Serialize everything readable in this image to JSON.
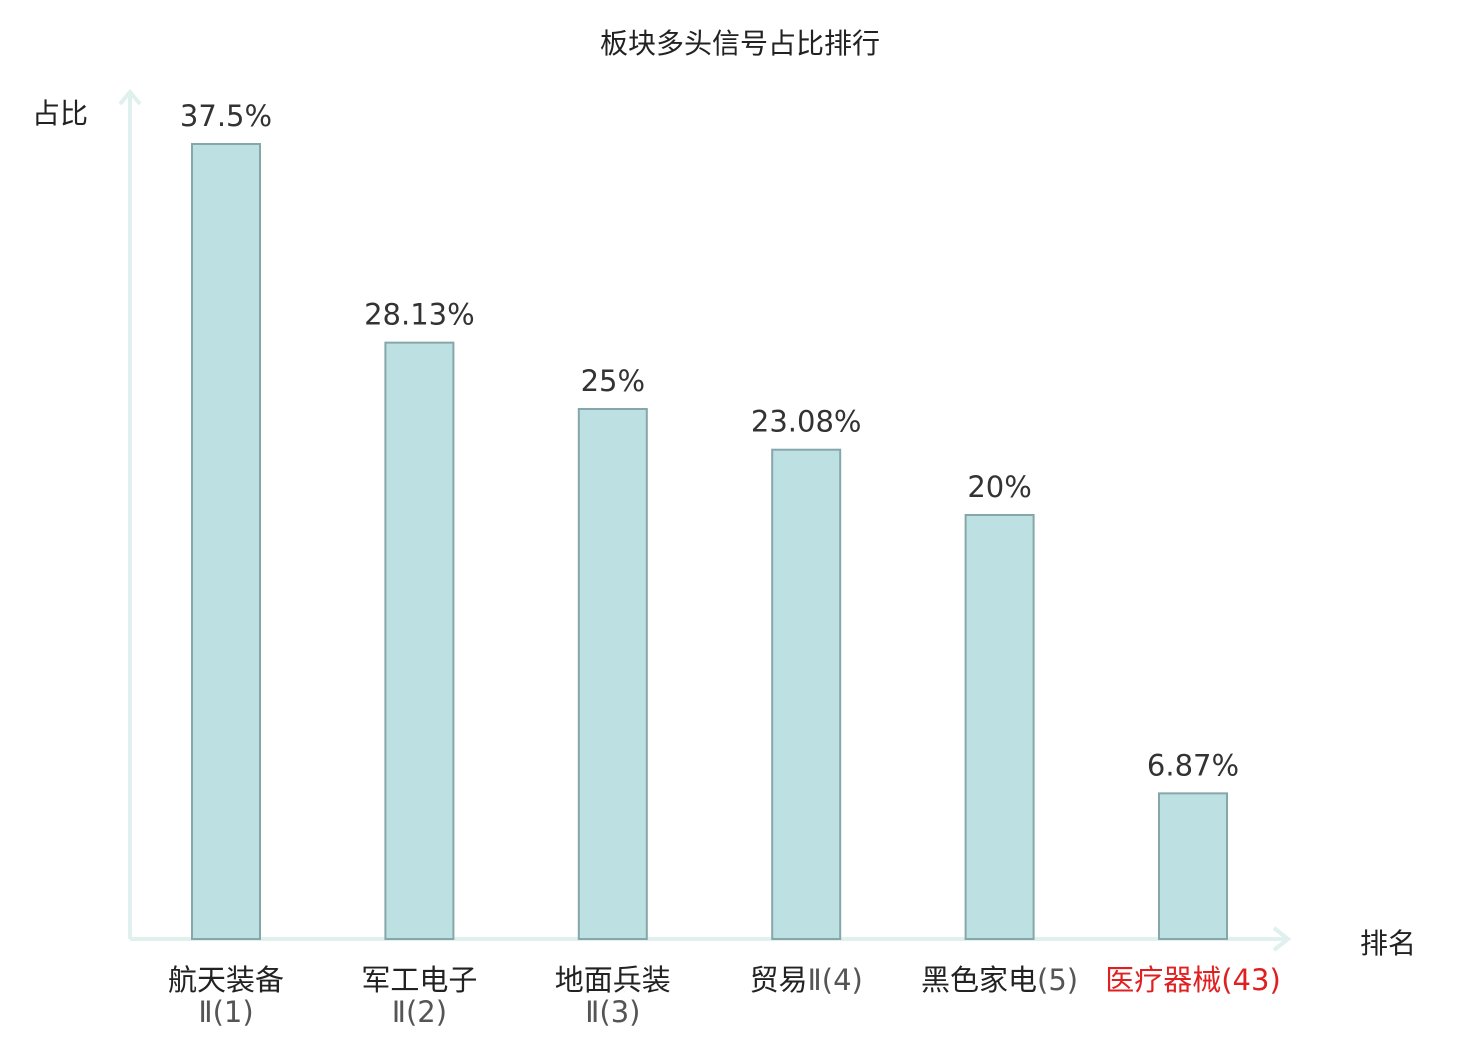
{
  "title": "板块多头信号占比排行",
  "chart_data": {
    "type": "bar",
    "title": "板块多头信号占比排行",
    "xlabel": "排名",
    "ylabel": "占比",
    "ylim": [
      0,
      40
    ],
    "grid": false,
    "categories": [
      {
        "name": "航天装备",
        "suffix": "Ⅱ(1)",
        "highlight": false
      },
      {
        "name": "军工电子",
        "suffix": "Ⅱ(2)",
        "highlight": false
      },
      {
        "name": "地面兵装",
        "suffix": "Ⅱ(3)",
        "highlight": false
      },
      {
        "name": "贸易",
        "suffix": "Ⅱ(4)",
        "highlight": false
      },
      {
        "name": "黑色家电",
        "suffix": "(5)",
        "highlight": false
      },
      {
        "name": "医疗器械",
        "suffix": "(43)",
        "highlight": true
      }
    ],
    "values": [
      37.5,
      28.13,
      25,
      23.08,
      20,
      6.87
    ],
    "value_labels": [
      "37.5%",
      "28.13%",
      "25%",
      "23.08%",
      "20%",
      "6.87%"
    ]
  },
  "colors": {
    "bar_fill": "#bde0e2",
    "bar_stroke": "#86a7a9",
    "axis": "#dff0ee",
    "highlight_text": "#e02020",
    "text": "#222222"
  }
}
